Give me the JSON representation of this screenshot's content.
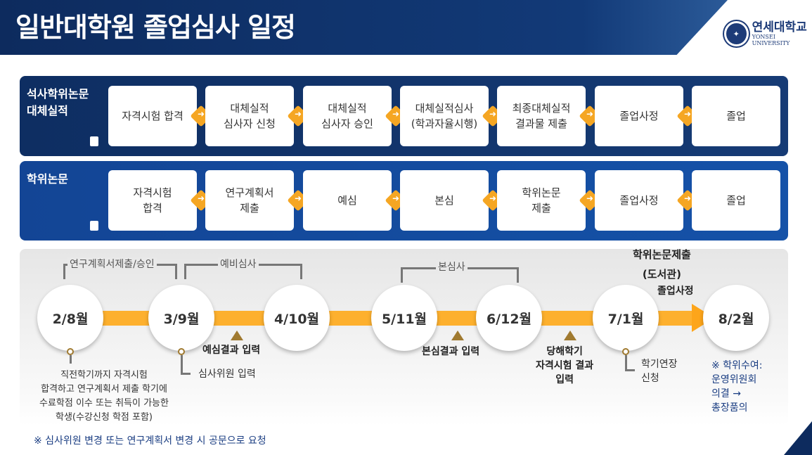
{
  "header": {
    "title": "일반대학원 졸업심사 일정",
    "logo_ko": "연세대학교",
    "logo_en": "YONSEI UNIVERSITY"
  },
  "tracks": [
    {
      "label": "석사학위논문\n대체실적",
      "icon": "document-icon",
      "steps": [
        "자격시험 합격",
        "대체실적\n심사자 신청",
        "대체실적\n심사자 승인",
        "대체실적심사\n(학과자율시행)",
        "최종대체실적\n결과물 제출",
        "졸업사정",
        "졸업"
      ]
    },
    {
      "label": "학위논문",
      "icon": "book-icon",
      "steps": [
        "자격시험\n합격",
        "연구계획서\n제출",
        "예심",
        "본심",
        "학위논문\n제출",
        "졸업사정",
        "졸업"
      ]
    }
  ],
  "timeline": {
    "milestones": [
      "2/8월",
      "3/9월",
      "4/10월",
      "5/11월",
      "6/12월",
      "7/1월",
      "8/2월"
    ],
    "spans": {
      "plan": "연구계획서제출/승인",
      "pre": "예비심사",
      "main": "본심사"
    },
    "events": {
      "pre_result": "예심결과 입력",
      "main_result": "본심결과 입력",
      "exam_result": "당해학기\n자격시험 결과\n입력",
      "reviewer": "심사위원 입력",
      "extension": "학기연장\n신청",
      "eligibility": "직전학기까지 자격시험\n합격하고 연구계획서 제출 학기에\n수료학점 이수 또는 취득이 가능한\n학생(수강신청 학점 포함)",
      "submit": "학위논문제출\n(도서관)",
      "grad": "졸업사정",
      "degree": "※ 학위수여:\n운영위원회\n의결 →\n총장품의"
    },
    "note": "※ 심사위원 변경 또는 연구계획서 변경 시 공문으로 요청"
  },
  "colors": {
    "navy": "#0e2e62",
    "blue": "#1552a8",
    "orange": "#fdb02e",
    "gold": "#a07a30"
  }
}
